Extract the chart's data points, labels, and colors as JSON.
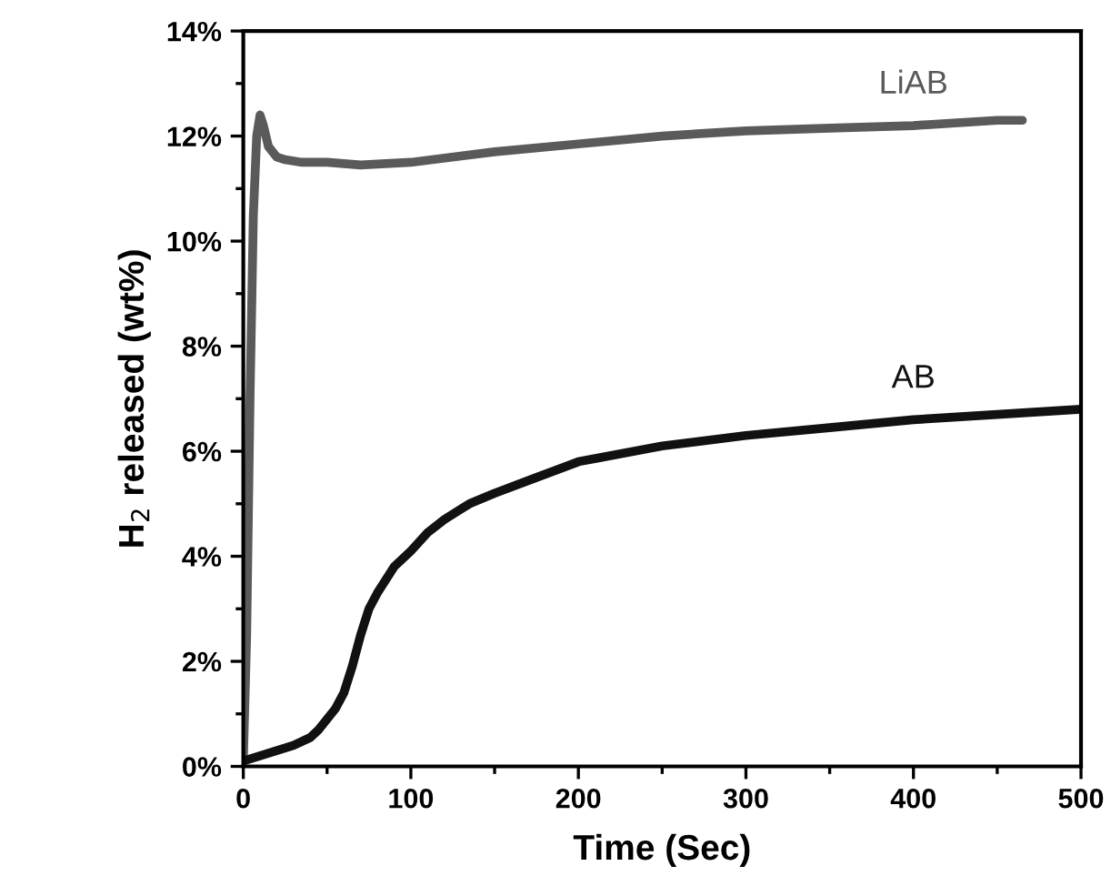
{
  "chart_data": {
    "type": "line",
    "xlabel": "Time (Sec)",
    "ylabel": "H$_{2}$ released (wt%)",
    "xlim": [
      0,
      500
    ],
    "xticks": [
      0,
      100,
      200,
      300,
      400,
      500
    ],
    "ylim": [
      0,
      14
    ],
    "yticks": [
      {
        "value": 0,
        "label": "0%"
      },
      {
        "value": 2,
        "label": "2%"
      },
      {
        "value": 4,
        "label": "4%"
      },
      {
        "value": 6,
        "label": "6%"
      },
      {
        "value": 8,
        "label": "8%"
      },
      {
        "value": 10,
        "label": "10%"
      },
      {
        "value": 12,
        "label": "12%"
      },
      {
        "value": 14,
        "label": "14%"
      }
    ],
    "grid": false,
    "legend": false,
    "marker": "none",
    "line_style": "solid",
    "series": [
      {
        "name": "LiAB",
        "color": "#5a5a5a",
        "x": [
          0,
          2,
          4,
          6,
          8,
          10,
          12,
          15,
          20,
          25,
          35,
          50,
          70,
          100,
          150,
          200,
          250,
          300,
          350,
          400,
          450,
          465
        ],
        "values": [
          0.1,
          2.5,
          7,
          10.5,
          12.0,
          12.4,
          12.2,
          11.8,
          11.6,
          11.55,
          11.5,
          11.5,
          11.45,
          11.5,
          11.7,
          11.85,
          12.0,
          12.1,
          12.15,
          12.2,
          12.3,
          12.3
        ]
      },
      {
        "name": "AB",
        "color": "#111111",
        "x": [
          0,
          10,
          20,
          30,
          40,
          45,
          50,
          55,
          60,
          65,
          70,
          75,
          80,
          90,
          100,
          110,
          120,
          135,
          150,
          175,
          200,
          250,
          300,
          350,
          400,
          450,
          500
        ],
        "values": [
          0.1,
          0.2,
          0.3,
          0.4,
          0.55,
          0.7,
          0.9,
          1.1,
          1.4,
          1.9,
          2.5,
          3.0,
          3.3,
          3.8,
          4.1,
          4.45,
          4.7,
          5.0,
          5.2,
          5.5,
          5.8,
          6.1,
          6.3,
          6.45,
          6.6,
          6.7,
          6.8
        ]
      }
    ]
  }
}
